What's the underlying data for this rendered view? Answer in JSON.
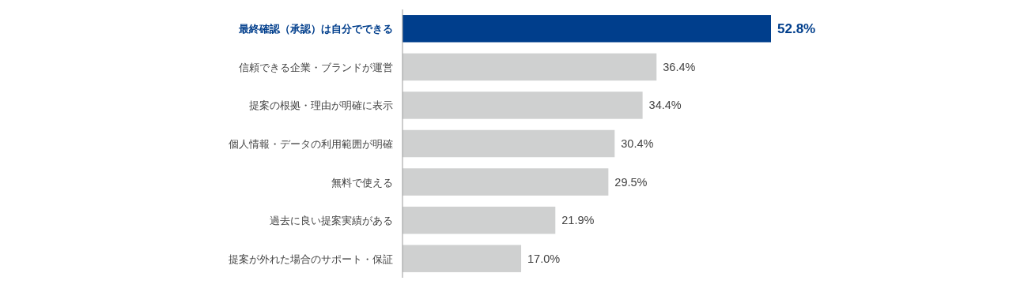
{
  "chart_data": {
    "type": "bar",
    "orientation": "horizontal",
    "categories": [
      "最終確認（承認）は自分でできる",
      "信頼できる企業・ブランドが運営",
      "提案の根拠・理由が明確に表示",
      "個人情報・データの利用範囲が明確",
      "無料で使える",
      "過去に良い提案実績がある",
      "提案が外れた場合のサポート・保証"
    ],
    "values": [
      52.8,
      36.4,
      34.4,
      30.4,
      29.5,
      21.9,
      17.0
    ],
    "value_labels": [
      "52.8%",
      "36.4%",
      "34.4%",
      "30.4%",
      "29.5%",
      "21.9%",
      "17.0%"
    ],
    "colors": [
      "#003e8c",
      "#cfd0d0",
      "#cfd0d0",
      "#cfd0d0",
      "#cfd0d0",
      "#cfd0d0",
      "#cfd0d0"
    ]
  }
}
